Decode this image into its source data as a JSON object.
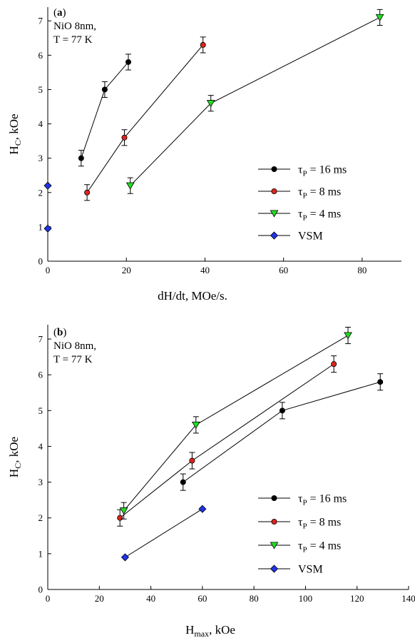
{
  "chart_data": [
    {
      "type": "line",
      "panel_label": "a",
      "annotation_lines": [
        "NiO 8nm,",
        "T = 77 K"
      ],
      "xlabel": "dH/dt, MOe/s.",
      "ylabel": "H",
      "ylabel_sub": "C",
      "ylabel_suffix": ", kOe",
      "xlim": [
        0,
        90
      ],
      "ylim": [
        0,
        7.4
      ],
      "x_ticks": [
        0,
        20,
        40,
        60,
        80
      ],
      "y_ticks": [
        0,
        1,
        2,
        3,
        4,
        5,
        6,
        7
      ],
      "grid": false,
      "legend_position": "right-middle",
      "series": [
        {
          "name": "τP = 16 ms",
          "legend_main": "τ",
          "legend_sub": "P",
          "legend_rest": " = 16 ms",
          "color": "#000000",
          "marker": "circle",
          "connected": true,
          "x": [
            8.5,
            14.5,
            20.5
          ],
          "y": [
            3.0,
            5.0,
            5.8
          ],
          "err": [
            0.23,
            0.23,
            0.23
          ]
        },
        {
          "name": "τP = 8 ms",
          "legend_main": "τ",
          "legend_sub": "P",
          "legend_rest": " = 8 ms",
          "color": "#e0231b",
          "marker": "circle",
          "connected": true,
          "x": [
            10,
            19.5,
            39.5
          ],
          "y": [
            2.0,
            3.6,
            6.3
          ],
          "err": [
            0.23,
            0.23,
            0.23
          ]
        },
        {
          "name": "τP = 4 ms",
          "legend_main": "τ",
          "legend_sub": "P",
          "legend_rest": " = 4 ms",
          "color": "#22dd22",
          "marker": "triangle-down",
          "connected": true,
          "x": [
            21,
            41.5,
            84.5
          ],
          "y": [
            2.2,
            4.6,
            7.1
          ],
          "err": [
            0.23,
            0.23,
            0.23
          ]
        },
        {
          "name": "VSM",
          "legend_main": "VSM",
          "legend_sub": "",
          "legend_rest": "",
          "color": "#1f33e8",
          "marker": "diamond",
          "connected": false,
          "x": [
            0,
            0
          ],
          "y": [
            2.2,
            0.95
          ],
          "err": [
            0,
            0
          ]
        }
      ]
    },
    {
      "type": "line",
      "panel_label": "b",
      "annotation_lines": [
        "NiO 8nm,",
        "T = 77 K"
      ],
      "xlabel": "H",
      "xlabel_sub": "max",
      "xlabel_suffix": ", kOe",
      "ylabel": "H",
      "ylabel_sub": "C",
      "ylabel_suffix": ", kOe",
      "xlim": [
        0,
        140
      ],
      "ylim": [
        0,
        7.4
      ],
      "x_ticks": [
        0,
        20,
        40,
        60,
        80,
        100,
        120,
        140
      ],
      "y_ticks": [
        0,
        1,
        2,
        3,
        4,
        5,
        6,
        7
      ],
      "grid": false,
      "legend_position": "right-bottom",
      "series": [
        {
          "name": "τP = 16 ms",
          "legend_main": "τ",
          "legend_sub": "P",
          "legend_rest": " = 16 ms",
          "color": "#000000",
          "marker": "circle",
          "connected": true,
          "x": [
            52.5,
            91,
            129
          ],
          "y": [
            3.0,
            5.0,
            5.8
          ],
          "err": [
            0.23,
            0.23,
            0.23
          ]
        },
        {
          "name": "τP = 8 ms",
          "legend_main": "τ",
          "legend_sub": "P",
          "legend_rest": " = 8 ms",
          "color": "#e0231b",
          "marker": "circle",
          "connected": true,
          "x": [
            28,
            56,
            111
          ],
          "y": [
            2.0,
            3.6,
            6.3
          ],
          "err": [
            0.23,
            0.23,
            0.23
          ]
        },
        {
          "name": "τP = 4 ms",
          "legend_main": "τ",
          "legend_sub": "P",
          "legend_rest": " = 4 ms",
          "color": "#22dd22",
          "marker": "triangle-down",
          "connected": true,
          "x": [
            29.5,
            57.5,
            116.5
          ],
          "y": [
            2.2,
            4.6,
            7.1
          ],
          "err": [
            0.23,
            0.23,
            0.23
          ]
        },
        {
          "name": "VSM",
          "legend_main": "VSM",
          "legend_sub": "",
          "legend_rest": "",
          "color": "#1f33e8",
          "marker": "diamond",
          "connected": true,
          "x": [
            30,
            60
          ],
          "y": [
            0.9,
            2.25
          ],
          "err": [
            0,
            0
          ]
        }
      ]
    }
  ]
}
